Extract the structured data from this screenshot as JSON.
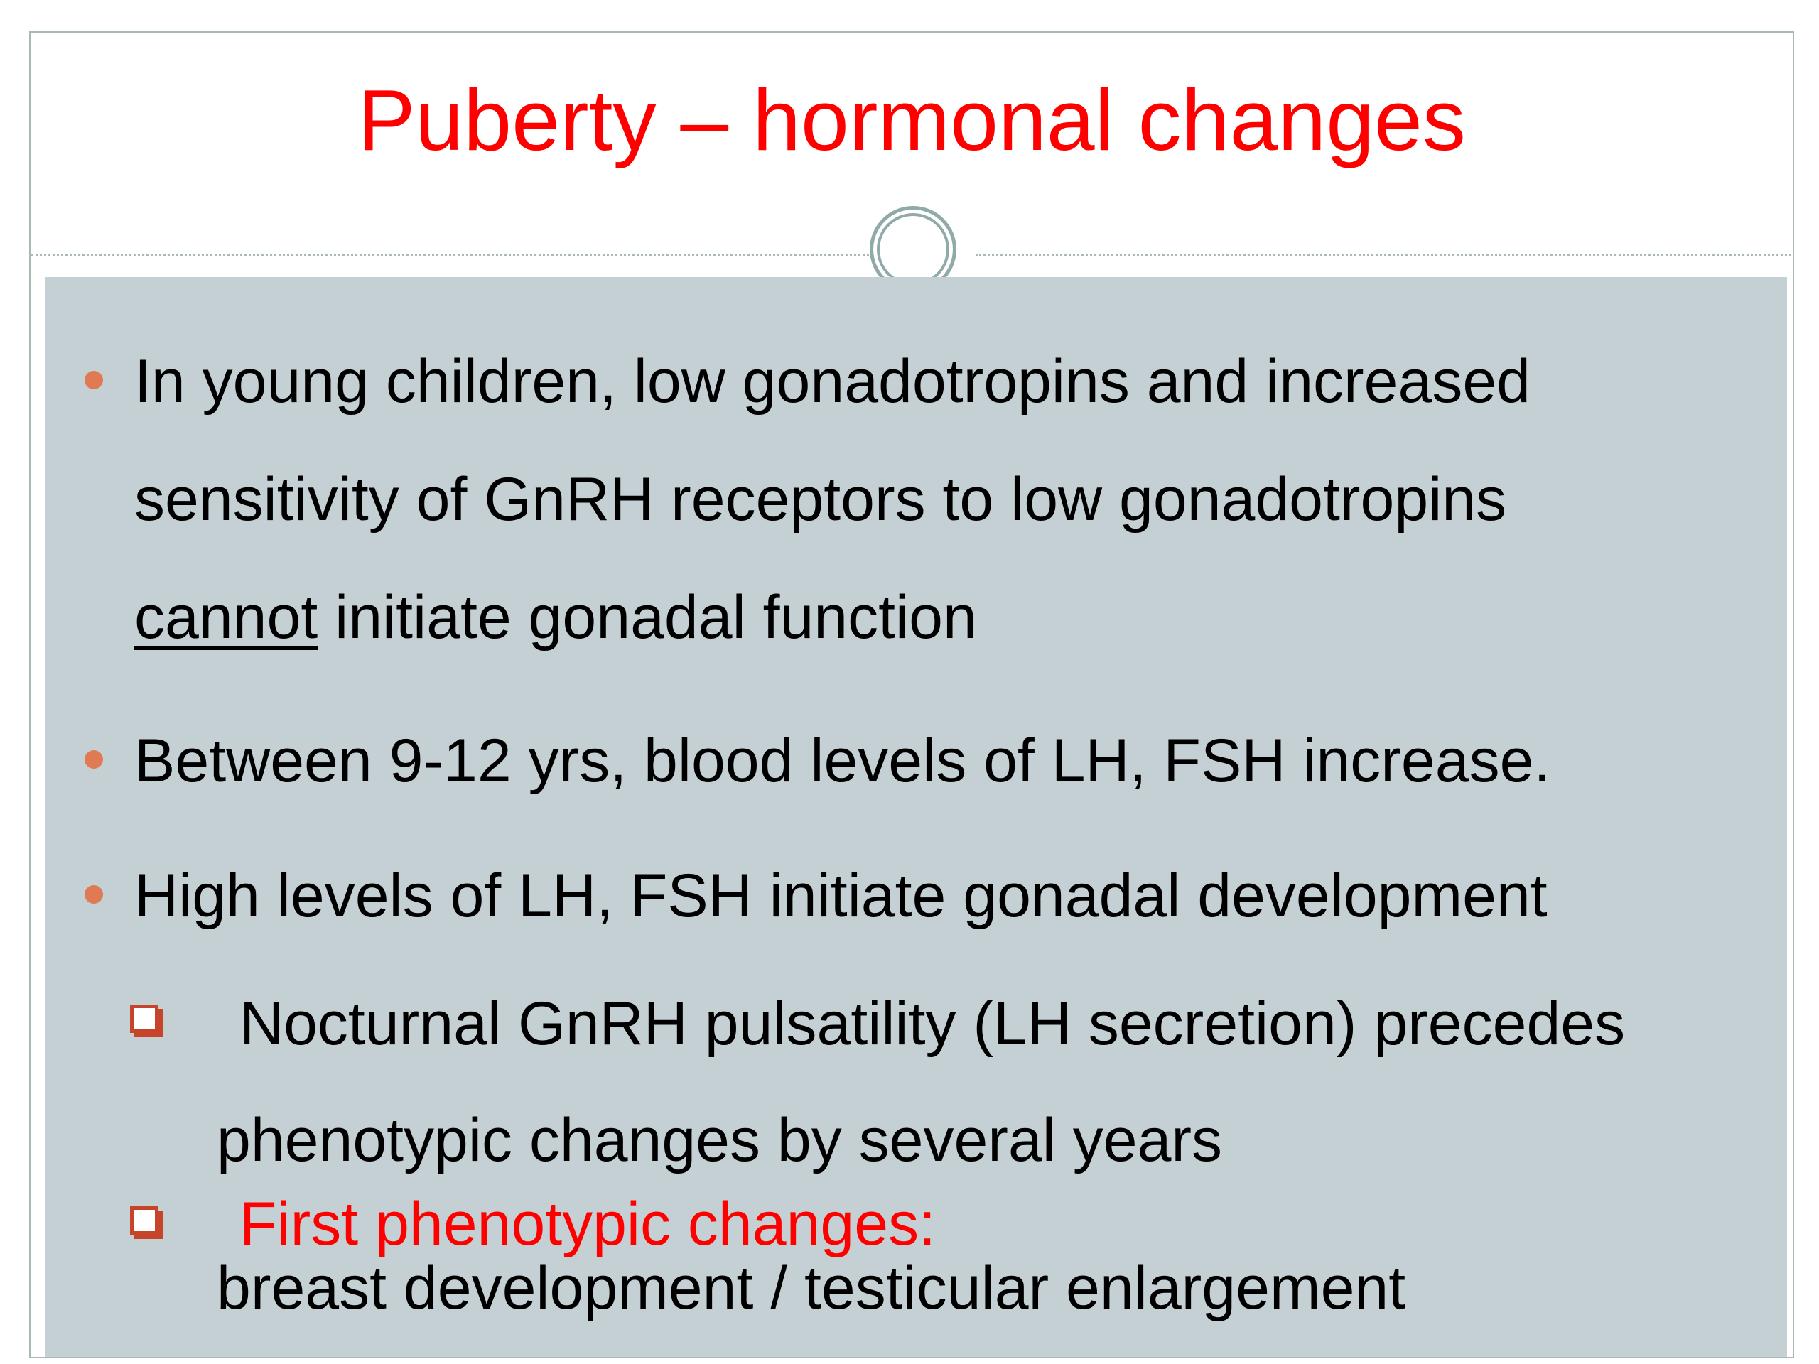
{
  "slide": {
    "title": "Puberty – hormonal changes",
    "bullets": [
      {
        "lines": [
          "In young children, low gonadotropins and increased",
          "sensitivity of GnRH receptors to low gonadotropins"
        ],
        "underlined_word": "cannot",
        "tail": " initiate gonadal function"
      },
      {
        "text": "Between 9-12 yrs, blood levels of LH, FSH increase."
      },
      {
        "text": "High levels of LH, FSH initiate gonadal development"
      }
    ],
    "subbullets": [
      {
        "line1": "Nocturnal GnRH pulsatility (LH secretion) precedes",
        "line2": "phenotypic changes by several years"
      },
      {
        "line1": "First phenotypic changes:",
        "line2": "breast development / testicular enlargement"
      }
    ]
  },
  "colors": {
    "title": "#ff0000",
    "panel_bg": "#c5d0d5",
    "bullet_dot": "#e07a52",
    "checkbox_bullet": "#c6452a",
    "highlight_text": "#ff0000"
  },
  "icons": {
    "bullet": "round-bullet-icon",
    "sub_bullet": "checkbox-bullet-icon",
    "divider_ornament": "ring-ornament-icon"
  }
}
